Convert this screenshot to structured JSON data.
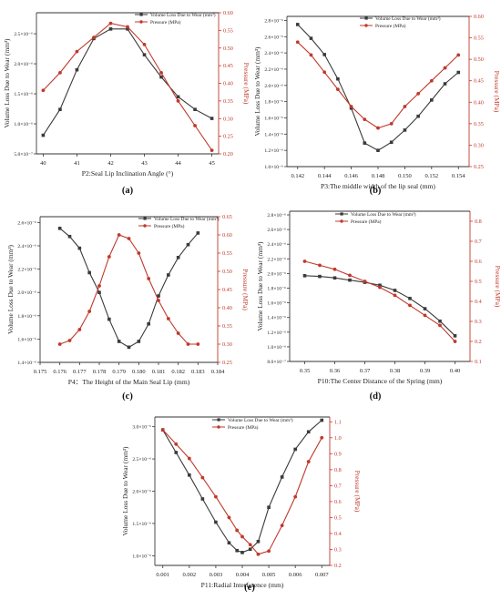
{
  "colors": {
    "wear": "#3a3a3a",
    "pressure": "#c0392b",
    "axis": "#333333"
  },
  "chart_data": [
    {
      "type": "line",
      "panel_label": "(a)",
      "xlabel": "P2:Seal Lip Inclination Angle (°)",
      "ylabel_left": "Volume Loss Due to Wear (mm³)",
      "ylabel_right": "Pressure (MPa)",
      "x": [
        40,
        40.5,
        41,
        41.5,
        42,
        42.5,
        43,
        43.5,
        44,
        44.5,
        45
      ],
      "xticks": [
        "40",
        "41",
        "42",
        "43",
        "44",
        "45"
      ],
      "xtick_values": [
        40,
        41,
        42,
        43,
        44,
        45
      ],
      "xlim": [
        39.8,
        45.2
      ],
      "left_ticks": [
        "5.0×10⁻⁷",
        "1.0×10⁻⁶",
        "1.5×10⁻⁶",
        "2.0×10⁻⁶",
        "2.5×10⁻⁶"
      ],
      "left_tick_values": [
        5e-07,
        1e-06,
        1.5e-06,
        2e-06,
        2.5e-06
      ],
      "left_ylim": [
        5e-07,
        2.85e-06
      ],
      "right_ticks": [
        "0.20",
        "0.25",
        "0.30",
        "0.35",
        "0.40",
        "0.45",
        "0.50",
        "0.55",
        "0.60"
      ],
      "right_tick_values": [
        0.2,
        0.25,
        0.3,
        0.35,
        0.4,
        0.45,
        0.5,
        0.55,
        0.6
      ],
      "right_ylim": [
        0.2,
        0.6
      ],
      "series": [
        {
          "name": "Volume Loss Due to Wear (mm³)",
          "axis": "left",
          "color": "#3a3a3a",
          "marker": "square",
          "values": [
            8.1e-07,
            1.24e-06,
            1.9e-06,
            2.42e-06,
            2.58e-06,
            2.58e-06,
            2.15e-06,
            1.78e-06,
            1.45e-06,
            1.24e-06,
            1.09e-06
          ]
        },
        {
          "name": "Pressure (MPa)",
          "axis": "right",
          "color": "#c0392b",
          "marker": "circle",
          "values": [
            0.38,
            0.43,
            0.49,
            0.53,
            0.57,
            0.56,
            0.51,
            0.43,
            0.35,
            0.28,
            0.21
          ]
        }
      ]
    },
    {
      "type": "line",
      "panel_label": "(b)",
      "xlabel": "P3:The middle width of the lip seal (mm)",
      "ylabel_left": "Volume Loss Due to Wear (mm³)",
      "ylabel_right": "Pressure (MPa)",
      "x": [
        0.142,
        0.143,
        0.144,
        0.145,
        0.146,
        0.147,
        0.148,
        0.149,
        0.15,
        0.151,
        0.152,
        0.153,
        0.154
      ],
      "xticks": [
        "0.142",
        "0.144",
        "0.146",
        "0.148",
        "0.150",
        "0.152",
        "0.154"
      ],
      "xtick_values": [
        0.142,
        0.144,
        0.146,
        0.148,
        0.15,
        0.152,
        0.154
      ],
      "xlim": [
        0.1412,
        0.1548
      ],
      "left_ticks": [
        "1.0×10⁻⁶",
        "1.2×10⁻⁶",
        "1.4×10⁻⁶",
        "1.6×10⁻⁶",
        "1.8×10⁻⁶",
        "2.0×10⁻⁶",
        "2.2×10⁻⁶",
        "2.4×10⁻⁶",
        "2.6×10⁻⁶",
        "2.8×10⁻⁶"
      ],
      "left_tick_values": [
        1e-06,
        1.2e-06,
        1.4e-06,
        1.6e-06,
        1.8e-06,
        2e-06,
        2.2e-06,
        2.4e-06,
        2.6e-06,
        2.8e-06
      ],
      "left_ylim": [
        1e-06,
        2.85e-06
      ],
      "right_ticks": [
        "0.25",
        "0.30",
        "0.35",
        "0.40",
        "0.45",
        "0.50",
        "0.55",
        "0.60"
      ],
      "right_tick_values": [
        0.25,
        0.3,
        0.35,
        0.4,
        0.45,
        0.5,
        0.55,
        0.6
      ],
      "right_ylim": [
        0.25,
        0.6
      ],
      "series": [
        {
          "name": "Volume Loss Due to Wear (mm³)",
          "axis": "left",
          "color": "#3a3a3a",
          "marker": "square",
          "values": [
            2.75e-06,
            2.58e-06,
            2.38e-06,
            2.08e-06,
            1.72e-06,
            1.29e-06,
            1.2e-06,
            1.3e-06,
            1.45e-06,
            1.62e-06,
            1.82e-06,
            2.02e-06,
            2.16e-06
          ]
        },
        {
          "name": "Pressure (MPa)",
          "axis": "right",
          "color": "#c0392b",
          "marker": "circle",
          "values": [
            0.54,
            0.51,
            0.47,
            0.43,
            0.39,
            0.36,
            0.34,
            0.35,
            0.39,
            0.42,
            0.45,
            0.48,
            0.51
          ]
        }
      ]
    },
    {
      "type": "line",
      "panel_label": "(c)",
      "xlabel": "P4：The Height of the Main Seal Lip (mm)",
      "ylabel_left": "Volume Loss Due to Wear (mm³)",
      "ylabel_right": "Pressure (MPa)",
      "x": [
        0.176,
        0.1765,
        0.177,
        0.1775,
        0.178,
        0.1785,
        0.179,
        0.1795,
        0.18,
        0.1805,
        0.181,
        0.1815,
        0.182,
        0.1825,
        0.183
      ],
      "xticks": [
        "0.175",
        "0.176",
        "0.177",
        "0.178",
        "0.179",
        "0.180",
        "0.181",
        "0.182",
        "0.183",
        "0.184"
      ],
      "xtick_values": [
        0.175,
        0.176,
        0.177,
        0.178,
        0.179,
        0.18,
        0.181,
        0.182,
        0.183,
        0.184
      ],
      "xlim": [
        0.175,
        0.184
      ],
      "left_ticks": [
        "1.4×10⁻⁶",
        "1.6×10⁻⁶",
        "1.8×10⁻⁶",
        "2.0×10⁻⁶",
        "2.2×10⁻⁶",
        "2.4×10⁻⁶",
        "2.6×10⁻⁶"
      ],
      "left_tick_values": [
        1.4e-06,
        1.6e-06,
        1.8e-06,
        2e-06,
        2.2e-06,
        2.4e-06,
        2.6e-06
      ],
      "left_ylim": [
        1.4e-06,
        2.65e-06
      ],
      "right_ticks": [
        "0.25",
        "0.30",
        "0.35",
        "0.40",
        "0.45",
        "0.50",
        "0.55",
        "0.60",
        "0.65"
      ],
      "right_tick_values": [
        0.25,
        0.3,
        0.35,
        0.4,
        0.45,
        0.5,
        0.55,
        0.6,
        0.65
      ],
      "right_ylim": [
        0.25,
        0.65
      ],
      "series": [
        {
          "name": "Volume Loss Due to Wear (mm³)",
          "axis": "left",
          "color": "#3a3a3a",
          "marker": "square",
          "values": [
            2.55e-06,
            2.48e-06,
            2.38e-06,
            2.17e-06,
            2e-06,
            1.77e-06,
            1.58e-06,
            1.53e-06,
            1.58e-06,
            1.73e-06,
            1.97e-06,
            2.15e-06,
            2.3e-06,
            2.41e-06,
            2.51e-06
          ]
        },
        {
          "name": "Pressure (MPa)",
          "axis": "right",
          "color": "#c0392b",
          "marker": "circle",
          "values": [
            0.3,
            0.31,
            0.34,
            0.39,
            0.46,
            0.54,
            0.6,
            0.59,
            0.55,
            0.48,
            0.42,
            0.37,
            0.33,
            0.3,
            0.3
          ]
        }
      ]
    },
    {
      "type": "line",
      "panel_label": "(d)",
      "xlabel": "P10:The Center Distance of the Spring (mm)",
      "ylabel_left": "Volume Loss Due to Wear (mm³)",
      "ylabel_right": "Pressure (MPa)",
      "x": [
        0.35,
        0.355,
        0.36,
        0.365,
        0.37,
        0.375,
        0.38,
        0.385,
        0.39,
        0.395,
        0.4
      ],
      "xticks": [
        "0.35",
        "0.36",
        "0.37",
        "0.38",
        "0.39",
        "0.40"
      ],
      "xtick_values": [
        0.35,
        0.36,
        0.37,
        0.38,
        0.39,
        0.4
      ],
      "xlim": [
        0.345,
        0.405
      ],
      "left_ticks": [
        "8.0×10⁻⁷",
        "1.0×10⁻⁶",
        "1.2×10⁻⁶",
        "1.4×10⁻⁶",
        "1.6×10⁻⁶",
        "1.8×10⁻⁶",
        "2.0×10⁻⁶",
        "2.2×10⁻⁶",
        "2.4×10⁻⁶",
        "2.6×10⁻⁶",
        "2.8×10⁻⁶"
      ],
      "left_tick_values": [
        8e-07,
        1e-06,
        1.2e-06,
        1.4e-06,
        1.6e-06,
        1.8e-06,
        2e-06,
        2.2e-06,
        2.4e-06,
        2.6e-06,
        2.8e-06
      ],
      "left_ylim": [
        8e-07,
        2.85e-06
      ],
      "right_ticks": [
        "0.1",
        "0.2",
        "0.3",
        "0.4",
        "0.5",
        "0.6",
        "0.7",
        "0.8"
      ],
      "right_tick_values": [
        0.1,
        0.2,
        0.3,
        0.4,
        0.5,
        0.6,
        0.7,
        0.8
      ],
      "right_ylim": [
        0.1,
        0.85
      ],
      "series": [
        {
          "name": "Volume Loss Due to Wear (mm³)",
          "axis": "left",
          "color": "#3a3a3a",
          "marker": "square",
          "values": [
            1.97e-06,
            1.96e-06,
            1.94e-06,
            1.91e-06,
            1.88e-06,
            1.84e-06,
            1.77e-06,
            1.66e-06,
            1.52e-06,
            1.35e-06,
            1.15e-06
          ]
        },
        {
          "name": "Pressure (MPa)",
          "axis": "right",
          "color": "#c0392b",
          "marker": "circle",
          "values": [
            0.6,
            0.58,
            0.56,
            0.53,
            0.5,
            0.47,
            0.43,
            0.38,
            0.33,
            0.28,
            0.2
          ]
        }
      ]
    },
    {
      "type": "line",
      "panel_label": "(e)",
      "xlabel": "P11:Radial Interference (mm)",
      "ylabel_left": "Volume Loss Due to Wear (mm³)",
      "ylabel_right": "Pressure (MPa)",
      "x": [
        0.001,
        0.0015,
        0.002,
        0.0025,
        0.003,
        0.0035,
        0.0038,
        0.004,
        0.0043,
        0.0046,
        0.005,
        0.0055,
        0.006,
        0.0065,
        0.007
      ],
      "xticks": [
        "0.001",
        "0.002",
        "0.003",
        "0.004",
        "0.005",
        "0.006",
        "0.007"
      ],
      "xtick_values": [
        0.001,
        0.002,
        0.003,
        0.004,
        0.005,
        0.006,
        0.007
      ],
      "xlim": [
        0.0007,
        0.0073
      ],
      "left_ticks": [
        "1.0×10⁻⁶",
        "1.5×10⁻⁶",
        "2.0×10⁻⁶",
        "2.5×10⁻⁶",
        "3.0×10⁻⁶"
      ],
      "left_tick_values": [
        1e-06,
        1.5e-06,
        2e-06,
        2.5e-06,
        3e-06
      ],
      "left_ylim": [
        8.5e-07,
        3.15e-06
      ],
      "right_ticks": [
        "0.2",
        "0.3",
        "0.4",
        "0.5",
        "0.6",
        "0.7",
        "0.8",
        "0.9",
        "1.0",
        "1.1"
      ],
      "right_tick_values": [
        0.2,
        0.3,
        0.4,
        0.5,
        0.6,
        0.7,
        0.8,
        0.9,
        1.0,
        1.1
      ],
      "right_ylim": [
        0.2,
        1.13
      ],
      "series": [
        {
          "name": "Volume Loss Due to Wear (mm³)",
          "axis": "left",
          "color": "#3a3a3a",
          "marker": "square",
          "values": [
            2.95e-06,
            2.6e-06,
            2.25e-06,
            1.88e-06,
            1.52e-06,
            1.2e-06,
            1.08e-06,
            1.05e-06,
            1.1e-06,
            1.22e-06,
            1.75e-06,
            2.22e-06,
            2.65e-06,
            2.92e-06,
            3.1e-06
          ]
        },
        {
          "name": "Pressure (MPa)",
          "axis": "right",
          "color": "#c0392b",
          "marker": "circle",
          "values": [
            1.05,
            0.96,
            0.87,
            0.75,
            0.63,
            0.5,
            0.42,
            0.38,
            0.33,
            0.27,
            0.29,
            0.45,
            0.63,
            0.85,
            1.0
          ]
        }
      ]
    }
  ]
}
